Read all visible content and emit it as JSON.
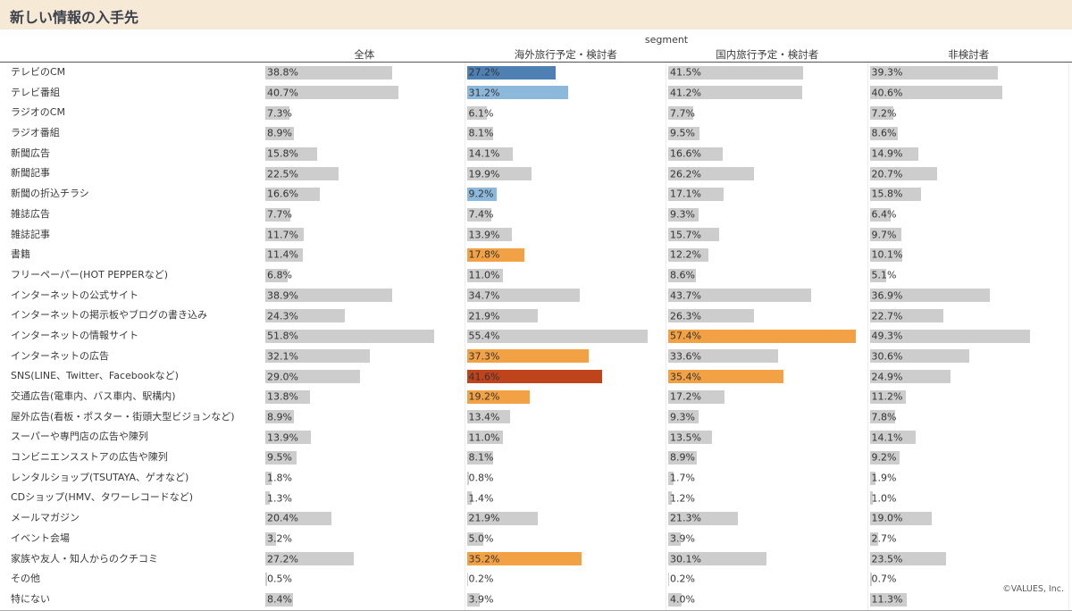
{
  "title": "新しい情報の入手先",
  "footer": "©VALUES, Inc.",
  "colors": {
    "default": "#cdcdcd",
    "blue": "#4e80b4",
    "light_blue": "#8cb8dc",
    "orange": "#f2a144",
    "red": "#bf431b"
  },
  "chart_data": {
    "type": "bar",
    "orientation": "horizontal",
    "title": "新しい情報の入手先",
    "group_header": "segment",
    "unit": "%",
    "xlim": [
      0,
      60
    ],
    "grid": false,
    "legend": "none",
    "categories": [
      "テレビのCM",
      "テレビ番組",
      "ラジオのCM",
      "ラジオ番組",
      "新聞広告",
      "新聞記事",
      "新聞の折込チラシ",
      "雑誌広告",
      "雑誌記事",
      "書籍",
      "フリーペーパー(HOT PEPPERなど)",
      "インターネットの公式サイト",
      "インターネットの掲示板やブログの書き込み",
      "インターネットの情報サイト",
      "インターネットの広告",
      "SNS(LINE、Twitter、Facebookなど)",
      "交通広告(電車内、バス車内、駅構内)",
      "屋外広告(看板・ポスター・街頭大型ビジョンなど)",
      "スーパーや専門店の広告や陳列",
      "コンビニエンスストアの広告や陳列",
      "レンタルショップ(TSUTAYA、ゲオなど)",
      "CDショップ(HMV、タワーレコードなど)",
      "メールマガジン",
      "イベント会場",
      "家族や友人・知人からのクチコミ",
      "その他",
      "特にない"
    ],
    "series": [
      {
        "name": "全体",
        "values": [
          38.8,
          40.7,
          7.3,
          8.9,
          15.8,
          22.5,
          16.6,
          7.7,
          11.7,
          11.4,
          6.8,
          38.9,
          24.3,
          51.8,
          32.1,
          29.0,
          13.8,
          8.9,
          13.9,
          9.5,
          1.8,
          1.3,
          20.4,
          3.2,
          27.2,
          0.5,
          8.4
        ]
      },
      {
        "name": "海外旅行予定・検討者",
        "values": [
          27.2,
          31.2,
          6.1,
          8.1,
          14.1,
          19.9,
          9.2,
          7.4,
          13.9,
          17.8,
          11.0,
          34.7,
          21.9,
          55.4,
          37.3,
          41.6,
          19.2,
          13.4,
          11.0,
          8.1,
          0.8,
          1.4,
          21.9,
          5.0,
          35.2,
          0.2,
          3.9
        ]
      },
      {
        "name": "国内旅行予定・検討者",
        "values": [
          41.5,
          41.2,
          7.7,
          9.5,
          16.6,
          26.2,
          17.1,
          9.3,
          15.7,
          12.2,
          8.6,
          43.7,
          26.3,
          57.4,
          33.6,
          35.4,
          17.2,
          9.3,
          13.5,
          8.9,
          1.7,
          1.2,
          21.3,
          3.9,
          30.1,
          0.2,
          4.0
        ]
      },
      {
        "name": "非検討者",
        "values": [
          39.3,
          40.6,
          7.2,
          8.6,
          14.9,
          20.7,
          15.8,
          6.4,
          9.7,
          10.1,
          5.1,
          36.9,
          22.7,
          49.3,
          30.6,
          24.9,
          11.2,
          7.8,
          14.1,
          9.2,
          1.9,
          1.0,
          19.0,
          2.7,
          23.5,
          0.7,
          11.3
        ]
      }
    ],
    "highlights": [
      {
        "row": 0,
        "col": 1,
        "color": "blue"
      },
      {
        "row": 1,
        "col": 1,
        "color": "light_blue"
      },
      {
        "row": 6,
        "col": 1,
        "color": "light_blue"
      },
      {
        "row": 9,
        "col": 1,
        "color": "orange"
      },
      {
        "row": 13,
        "col": 2,
        "color": "orange"
      },
      {
        "row": 14,
        "col": 1,
        "color": "orange"
      },
      {
        "row": 15,
        "col": 1,
        "color": "red"
      },
      {
        "row": 15,
        "col": 2,
        "color": "orange"
      },
      {
        "row": 16,
        "col": 1,
        "color": "orange"
      },
      {
        "row": 24,
        "col": 1,
        "color": "orange"
      }
    ]
  }
}
